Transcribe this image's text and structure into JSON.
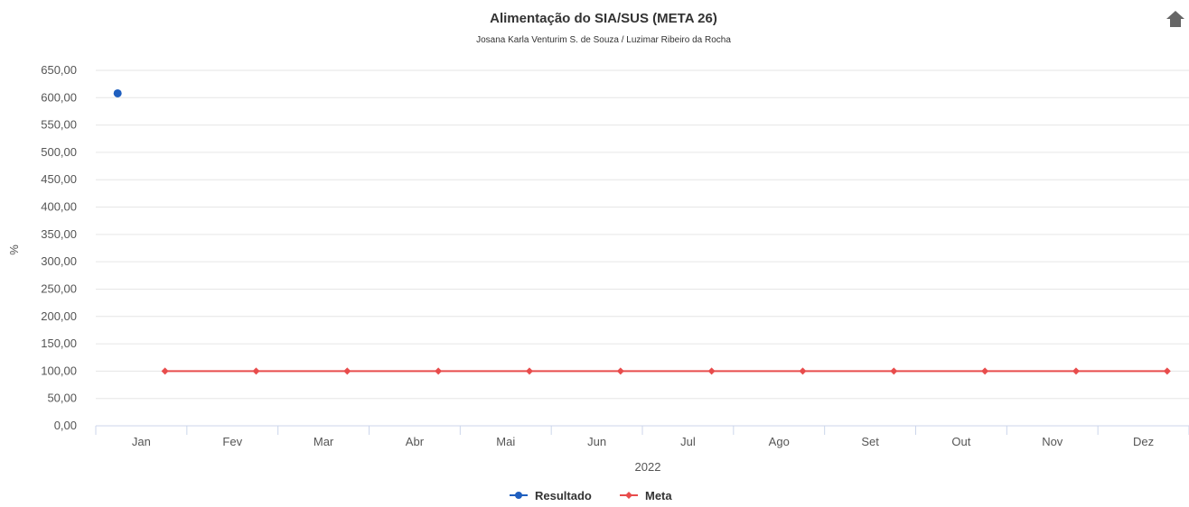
{
  "chart_data": {
    "type": "line",
    "title": "Alimentação do SIA/SUS (META 26)",
    "subtitle": "Josana Karla Venturim S. de Souza / Luzimar Ribeiro da Rocha",
    "xlabel": "2022",
    "ylabel": "%",
    "categories": [
      "Jan",
      "Fev",
      "Mar",
      "Abr",
      "Mai",
      "Jun",
      "Jul",
      "Ago",
      "Set",
      "Out",
      "Nov",
      "Dez"
    ],
    "ylim": [
      0,
      650
    ],
    "yticks": [
      "0,00",
      "50,00",
      "100,00",
      "150,00",
      "200,00",
      "250,00",
      "300,00",
      "350,00",
      "400,00",
      "450,00",
      "500,00",
      "550,00",
      "600,00",
      "650,00"
    ],
    "grid": true,
    "legend_position": "bottom-center",
    "series": [
      {
        "name": "Resultado",
        "color": "#1f5fbf",
        "marker": "circle",
        "values": [
          608,
          null,
          null,
          null,
          null,
          null,
          null,
          null,
          null,
          null,
          null,
          null
        ]
      },
      {
        "name": "Meta",
        "color": "#e84c4c",
        "marker": "diamond",
        "values": [
          100,
          100,
          100,
          100,
          100,
          100,
          100,
          100,
          100,
          100,
          100,
          100
        ]
      }
    ]
  },
  "menu_icon": "home-icon"
}
